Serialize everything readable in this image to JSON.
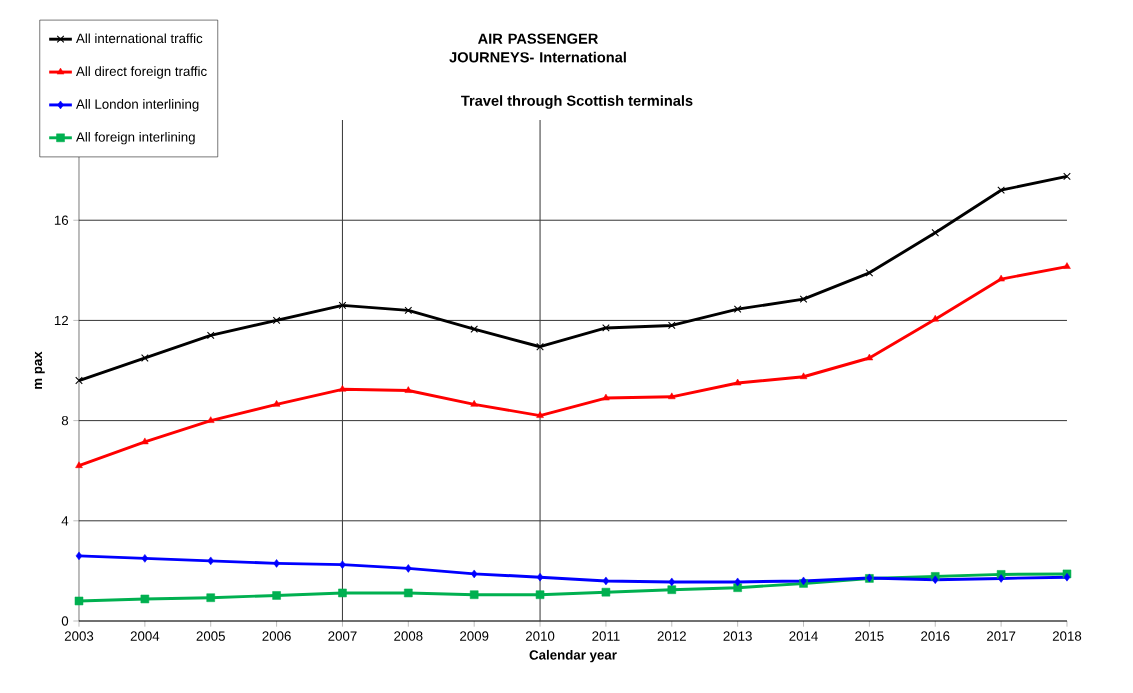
{
  "chart_data": {
    "type": "line",
    "title": "AIR PASSENGER JOURNEYS- International",
    "subtitle": "Travel through Scottish terminals",
    "xlabel": "Calendar year",
    "ylabel": "m pax",
    "x": [
      2003,
      2004,
      2005,
      2006,
      2007,
      2008,
      2009,
      2010,
      2011,
      2012,
      2013,
      2014,
      2015,
      2016,
      2017,
      2018
    ],
    "series": [
      {
        "name": "All international traffic",
        "color": "#000000",
        "marker": "cross",
        "values": [
          9.6,
          10.5,
          11.4,
          12.0,
          12.6,
          12.4,
          11.65,
          10.95,
          11.7,
          11.8,
          12.45,
          12.85,
          13.9,
          15.5,
          17.2,
          17.75
        ]
      },
      {
        "name": "All direct foreign traffic",
        "color": "#ff0000",
        "marker": "triangle",
        "values": [
          6.2,
          7.15,
          8.0,
          8.65,
          9.25,
          9.2,
          8.65,
          8.2,
          8.9,
          8.95,
          9.5,
          9.75,
          10.5,
          12.05,
          13.65,
          14.15
        ]
      },
      {
        "name": "All London interlining",
        "color": "#0000ff",
        "marker": "diamond",
        "values": [
          2.6,
          2.5,
          2.4,
          2.3,
          2.25,
          2.1,
          1.88,
          1.75,
          1.6,
          1.56,
          1.56,
          1.6,
          1.72,
          1.65,
          1.7,
          1.75
        ]
      },
      {
        "name": "All foreign interlining",
        "color": "#00b050",
        "marker": "square",
        "values": [
          0.8,
          0.88,
          0.93,
          1.02,
          1.12,
          1.12,
          1.05,
          1.05,
          1.15,
          1.25,
          1.33,
          1.5,
          1.7,
          1.78,
          1.86,
          1.88
        ]
      }
    ],
    "xlim": [
      2003,
      2018
    ],
    "xticks": [
      2003,
      2004,
      2005,
      2006,
      2007,
      2008,
      2009,
      2010,
      2011,
      2012,
      2013,
      2014,
      2015,
      2016,
      2017,
      2018
    ],
    "ylim": [
      0,
      20
    ],
    "yticks": [
      0,
      4,
      8,
      12,
      16
    ],
    "grid": "y",
    "legend": "top left",
    "line_style": "solid",
    "ref_lines": [
      {
        "axis": "x",
        "value": 2007,
        "color": "#404040"
      },
      {
        "axis": "x",
        "value": 2010,
        "color": "#404040"
      }
    ]
  }
}
